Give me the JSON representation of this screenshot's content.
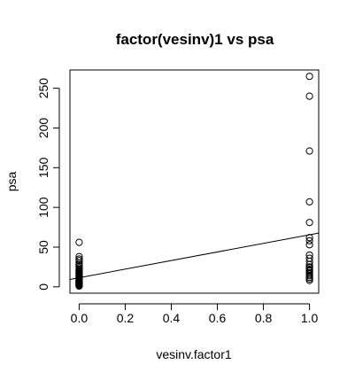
{
  "chart_data": {
    "type": "scatter",
    "title": "factor(vesinv)1 vs psa",
    "xlabel": "vesinv.factor1",
    "ylabel": "psa",
    "xlim": [
      -0.04,
      1.04
    ],
    "ylim": [
      -8,
      273
    ],
    "xticks": [
      0.0,
      0.2,
      0.4,
      0.6,
      0.8,
      1.0
    ],
    "xtick_labels": [
      "0.0",
      "0.2",
      "0.4",
      "0.6",
      "0.8",
      "1.0"
    ],
    "yticks": [
      0,
      50,
      100,
      150,
      200,
      250
    ],
    "ytick_labels": [
      "0",
      "50",
      "100",
      "150",
      "200",
      "250"
    ],
    "grid": false,
    "series": [
      {
        "x": [
          0,
          0,
          0,
          0,
          0,
          0,
          0,
          0,
          0,
          0,
          0,
          0,
          0,
          0,
          0,
          0,
          0,
          0,
          0,
          0,
          0,
          0,
          0,
          0,
          0,
          0,
          0,
          0,
          0,
          0,
          0,
          0,
          0,
          0,
          0,
          0,
          0,
          0,
          0,
          0,
          1,
          1,
          1,
          1,
          1,
          1,
          1,
          1,
          1,
          1,
          1,
          1,
          1,
          1,
          1,
          1,
          1,
          1,
          1,
          1,
          1,
          1,
          1
        ],
        "y": [
          56,
          38,
          35,
          33,
          30,
          28,
          26,
          24,
          22,
          21,
          20,
          19,
          18,
          17,
          16,
          15,
          14,
          13,
          12,
          11,
          10.5,
          10,
          9.5,
          9,
          8.5,
          8,
          7.5,
          7,
          6.5,
          6,
          5.5,
          5,
          4.5,
          4,
          3.5,
          3,
          2.5,
          2,
          1.5,
          1,
          265,
          240,
          171,
          107,
          81,
          62,
          58,
          53,
          40,
          36,
          32,
          28,
          25,
          24,
          22,
          21,
          20,
          18,
          16,
          14,
          12,
          10,
          8
        ]
      }
    ],
    "fit_line": {
      "intercept": 11.5,
      "slope": 54.0
    }
  }
}
